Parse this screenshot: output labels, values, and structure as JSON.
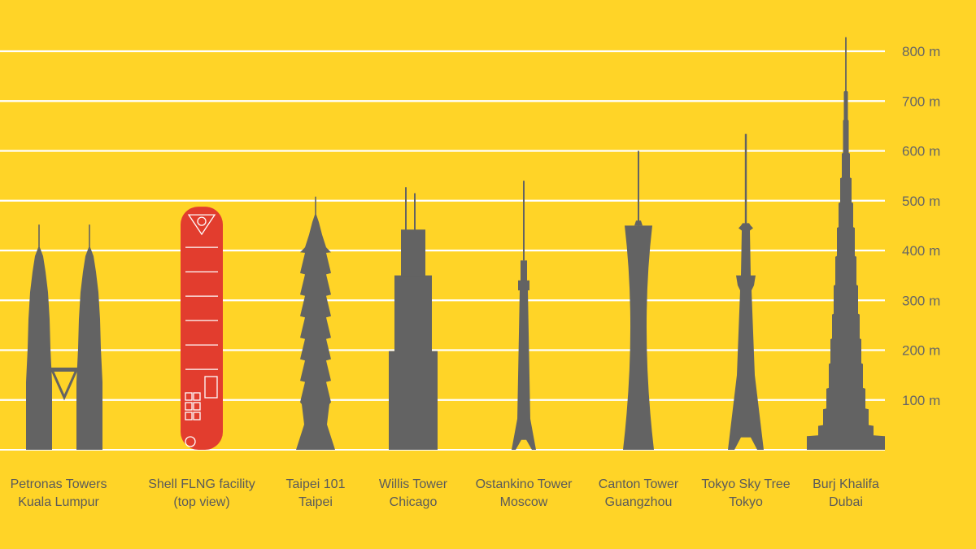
{
  "chart_data": {
    "type": "bar",
    "y_unit": "m",
    "ylim": [
      0,
      800
    ],
    "yticks": [
      {
        "value": 100,
        "label": "100 m"
      },
      {
        "value": 200,
        "label": "200 m"
      },
      {
        "value": 300,
        "label": "300 m"
      },
      {
        "value": 400,
        "label": "400 m"
      },
      {
        "value": 500,
        "label": "500 m"
      },
      {
        "value": 600,
        "label": "600 m"
      },
      {
        "value": 700,
        "label": "700 m"
      },
      {
        "value": 800,
        "label": "800 m"
      }
    ],
    "grid": true,
    "structures": [
      {
        "key": "petronas",
        "line1": "Petronas Towers",
        "line2": "Kuala Lumpur",
        "height": 452
      },
      {
        "key": "flng",
        "line1": "Shell FLNG facility",
        "line2": "(top view)",
        "height": 488
      },
      {
        "key": "taipei",
        "line1": "Taipei 101",
        "line2": "Taipei",
        "height": 508
      },
      {
        "key": "willis",
        "line1": "Willis Tower",
        "line2": "Chicago",
        "height": 527
      },
      {
        "key": "ostankino",
        "line1": "Ostankino Tower",
        "line2": "Moscow",
        "height": 540
      },
      {
        "key": "canton",
        "line1": "Canton Tower",
        "line2": "Guangzhou",
        "height": 600
      },
      {
        "key": "skytree",
        "line1": "Tokyo Sky Tree",
        "line2": "Tokyo",
        "height": 634
      },
      {
        "key": "burj",
        "line1": "Burj Khalifa",
        "line2": "Dubai",
        "height": 828
      }
    ]
  },
  "colors": {
    "background": "#FFD427",
    "building": "#636363",
    "highlight": "#E23D2E",
    "grid": "#FFFFFF",
    "text": "#666666"
  }
}
